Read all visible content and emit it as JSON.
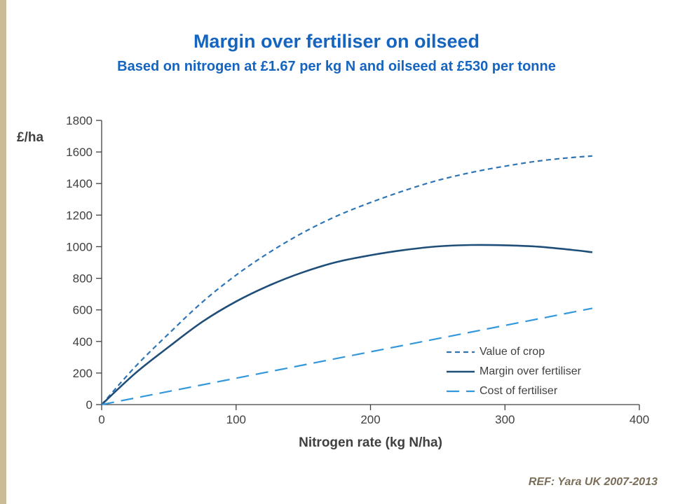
{
  "header": {
    "title": "Margin over fertiliser on oilseed",
    "subtitle": "Based on nitrogen at £1.67 per kg N and oilseed at £530 per tonne"
  },
  "footer": {
    "ref": "REF: Yara UK 2007-2013"
  },
  "colors": {
    "title_blue": "#1565c0",
    "axis_text": "#404040",
    "axis_line": "#404040",
    "left_strip": "#c9bc96",
    "ref_text": "#7b6e58"
  },
  "chart_data": {
    "type": "line",
    "title": "Margin over fertiliser on oilseed",
    "subtitle": "Based on nitrogen at £1.67 per kg N and oilseed at £530 per tonne",
    "xlabel": "Nitrogen rate (kg N/ha)",
    "ylabel": "£/ha",
    "xlim": [
      0,
      400
    ],
    "ylim": [
      0,
      1800
    ],
    "x_ticks": [
      0,
      100,
      200,
      300,
      400
    ],
    "y_ticks": [
      0,
      200,
      400,
      600,
      800,
      1000,
      1200,
      1400,
      1600,
      1800
    ],
    "grid": false,
    "legend_position": "inside lower right",
    "series": [
      {
        "name": "Value of crop",
        "color": "#2e75b6",
        "style": "short-dash",
        "dash": "7 5",
        "width": 2.2,
        "x": [
          0,
          25,
          50,
          75,
          100,
          125,
          150,
          175,
          200,
          225,
          250,
          275,
          300,
          325,
          350,
          365
        ],
        "y": [
          0,
          240,
          450,
          650,
          820,
          965,
          1090,
          1195,
          1280,
          1355,
          1420,
          1470,
          1510,
          1543,
          1565,
          1575
        ]
      },
      {
        "name": "Margin over fertiliser",
        "color": "#1f4e79",
        "style": "solid",
        "dash": "",
        "width": 2.6,
        "x": [
          0,
          25,
          50,
          75,
          100,
          125,
          150,
          175,
          200,
          225,
          250,
          275,
          300,
          325,
          350,
          365
        ],
        "y": [
          0,
          198,
          366,
          525,
          653,
          756,
          839,
          903,
          946,
          979,
          1002,
          1011,
          1009,
          1000,
          980,
          965
        ]
      },
      {
        "name": "Cost of fertiliser",
        "color": "#3398db",
        "style": "long-dash",
        "dash": "18 10",
        "width": 2.2,
        "x": [
          0,
          365
        ],
        "y": [
          0,
          610
        ]
      }
    ]
  }
}
